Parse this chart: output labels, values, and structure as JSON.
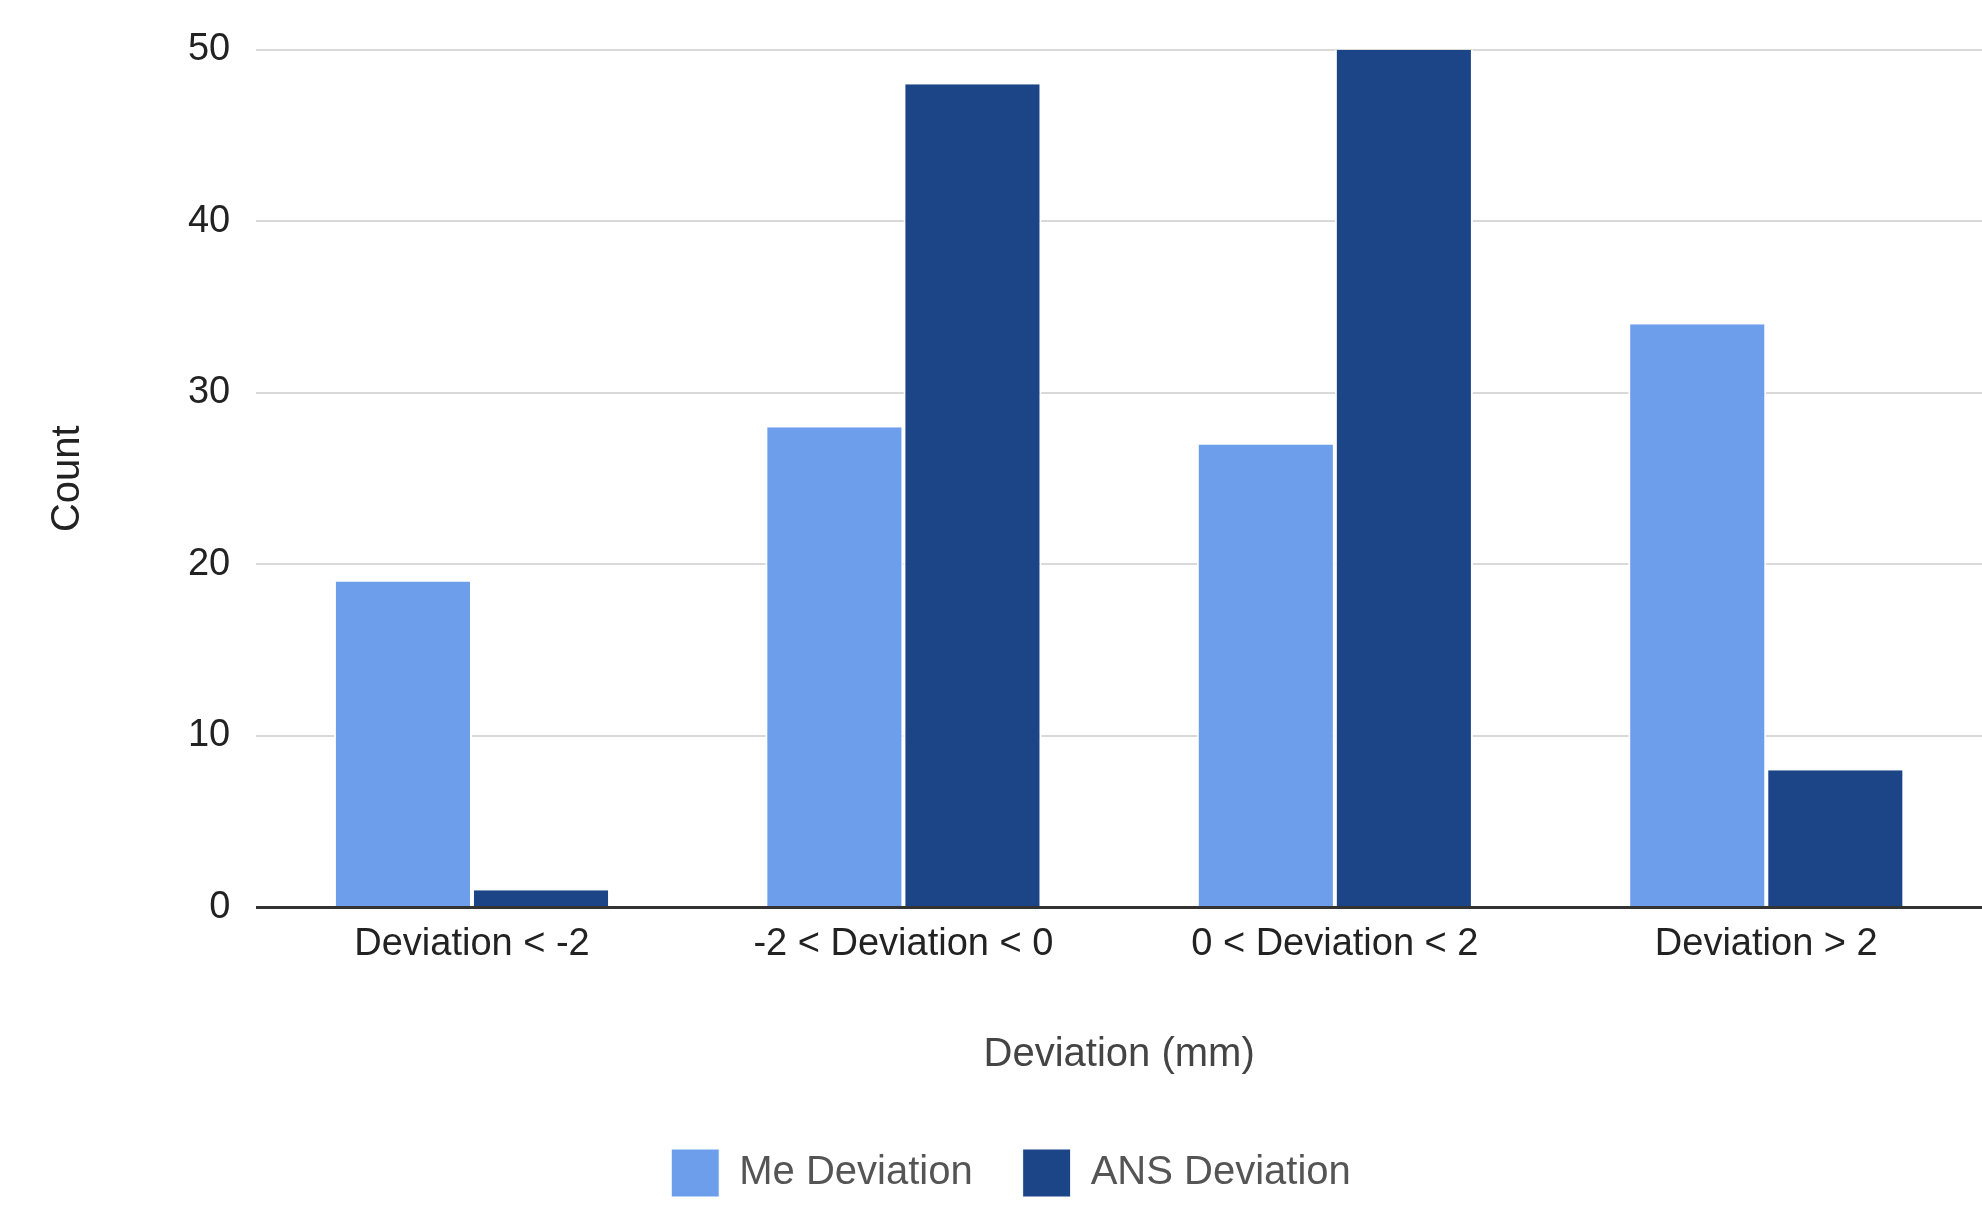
{
  "chart_data": {
    "type": "bar",
    "xlabel": "Deviation (mm)",
    "ylabel": "Count",
    "categories": [
      "Deviation < -2",
      "-2 < Deviation < 0",
      "0 < Deviation < 2",
      "Deviation > 2"
    ],
    "series": [
      {
        "name": "Me Deviation",
        "color": "#6d9eeb",
        "values": [
          19,
          28,
          27,
          34
        ]
      },
      {
        "name": "ANS Deviation",
        "color": "#1c4587",
        "values": [
          1,
          48,
          50,
          8
        ]
      }
    ],
    "ylim": [
      0,
      50
    ],
    "yticks": [
      0,
      10,
      20,
      30,
      40,
      50
    ],
    "grid": "y",
    "legend": "bottom"
  }
}
